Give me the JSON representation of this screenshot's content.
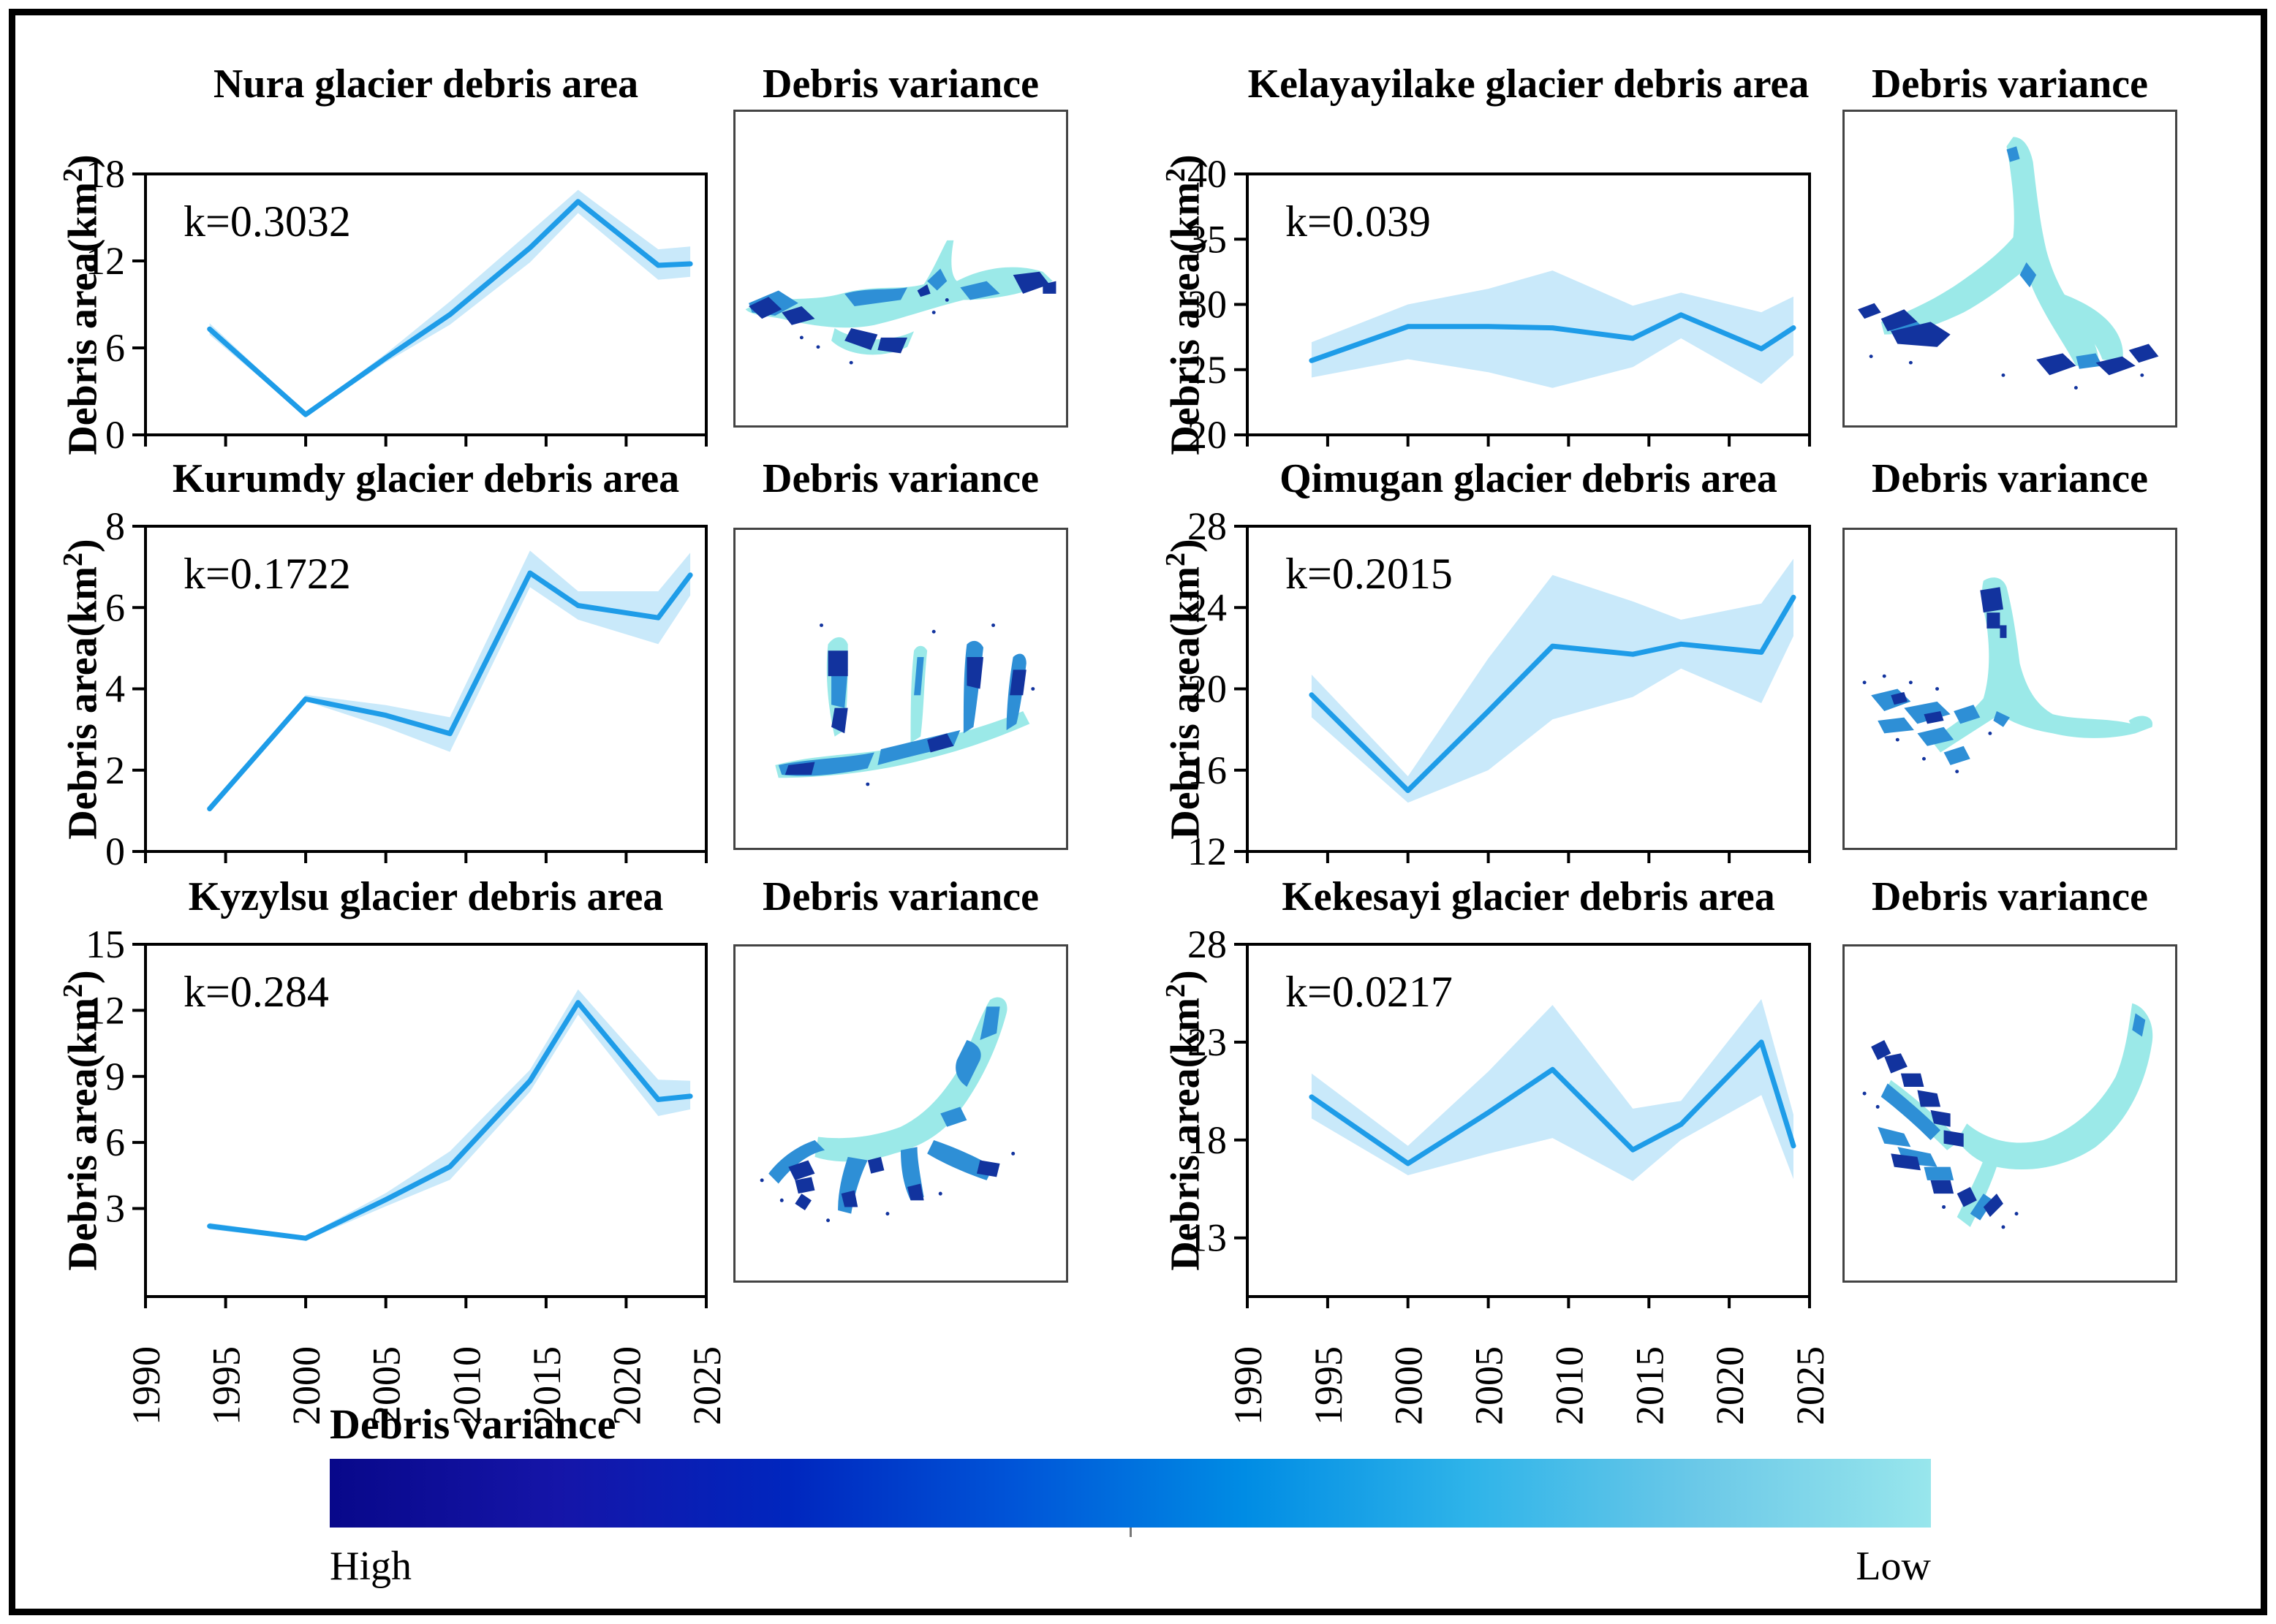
{
  "figure": {
    "background": "#ffffff",
    "border_color": "#000000"
  },
  "colors": {
    "line": "#1E9CE8",
    "band": "#C9E9FA",
    "map_low": "#9BE9E8",
    "map_mid": "#2E8FD6",
    "map_high": "#12339E",
    "colorbar_stops": [
      "#08088A",
      "#1515A8",
      "#0026BE",
      "#0055D8",
      "#008CE4",
      "#2FB4E9",
      "#6CC9E8",
      "#98E6EC"
    ]
  },
  "axis": {
    "ylabel_base": "Debris area(km",
    "ylabel_sup": "2",
    "ylabel_paren": ")",
    "xticks": [
      1990,
      1995,
      2000,
      2005,
      2010,
      2015,
      2020,
      2025
    ]
  },
  "legend": {
    "title": "Debris variance",
    "high": "High",
    "low": "Low"
  },
  "maps": [
    {
      "glacier": "Nura",
      "title": "Debris variance"
    },
    {
      "glacier": "Kelayayilake",
      "title": "Debris variance"
    },
    {
      "glacier": "Kurumdy",
      "title": "Debris variance"
    },
    {
      "glacier": "Qimugan",
      "title": "Debris variance"
    },
    {
      "glacier": "Kyzylsu",
      "title": "Debris variance"
    },
    {
      "glacier": "Kekesayi",
      "title": "Debris variance"
    }
  ],
  "chart_data": [
    {
      "type": "line",
      "title": "Nura glacier debris area",
      "annotation": "k=0.3032",
      "ylabel": "Debris area(km2)",
      "xlim": [
        1990,
        2025
      ],
      "ylim": [
        0,
        18
      ],
      "yticks": [
        0,
        6,
        12,
        18
      ],
      "xticks": [
        1990,
        1995,
        2000,
        2005,
        2010,
        2015,
        2020,
        2025
      ],
      "x": [
        1994,
        2000,
        2005,
        2009,
        2014,
        2017,
        2022,
        2024
      ],
      "series": [
        {
          "name": "mean",
          "values": [
            7.3,
            1.4,
            5.3,
            8.3,
            12.9,
            16.1,
            11.7,
            11.8
          ]
        },
        {
          "name": "lower",
          "values": [
            6.9,
            1.3,
            5.0,
            7.6,
            11.9,
            15.3,
            10.7,
            10.9
          ]
        },
        {
          "name": "upper",
          "values": [
            7.7,
            1.5,
            5.6,
            9.2,
            14.0,
            16.9,
            12.8,
            13.0
          ]
        }
      ],
      "band": true,
      "show_x_labels": false,
      "grid": false,
      "legend_position": "none"
    },
    {
      "type": "line",
      "title": "Kelayayilake glacier debris area",
      "annotation": "k=0.039",
      "ylabel": "Debris area(km2)",
      "xlim": [
        1990,
        2025
      ],
      "ylim": [
        20,
        40
      ],
      "yticks": [
        20,
        25,
        30,
        35,
        40
      ],
      "xticks": [
        1990,
        1995,
        2000,
        2005,
        2010,
        2015,
        2020,
        2025
      ],
      "x": [
        1994,
        2000,
        2005,
        2009,
        2014,
        2017,
        2022,
        2024
      ],
      "series": [
        {
          "name": "mean",
          "values": [
            25.7,
            28.3,
            28.3,
            28.2,
            27.4,
            29.2,
            26.6,
            28.2
          ]
        },
        {
          "name": "lower",
          "values": [
            24.4,
            25.8,
            24.8,
            23.6,
            25.2,
            27.4,
            23.9,
            26.1
          ]
        },
        {
          "name": "upper",
          "values": [
            27.1,
            30.0,
            31.2,
            32.6,
            29.9,
            30.9,
            29.4,
            30.6
          ]
        }
      ],
      "band": true,
      "show_x_labels": false,
      "grid": false,
      "legend_position": "none"
    },
    {
      "type": "line",
      "title": "Kurumdy glacier debris area",
      "annotation": "k=0.1722",
      "ylabel": "Debris area(km2)",
      "xlim": [
        1990,
        2025
      ],
      "ylim": [
        0,
        8
      ],
      "yticks": [
        0,
        2,
        4,
        6,
        8
      ],
      "xticks": [
        1990,
        1995,
        2000,
        2005,
        2010,
        2015,
        2020,
        2025
      ],
      "x": [
        1994,
        2000,
        2005,
        2009,
        2014,
        2017,
        2022,
        2024
      ],
      "series": [
        {
          "name": "mean",
          "values": [
            1.05,
            3.75,
            3.35,
            2.9,
            6.85,
            6.05,
            5.75,
            6.8
          ]
        },
        {
          "name": "lower",
          "values": [
            1.0,
            3.7,
            3.05,
            2.45,
            6.5,
            5.7,
            5.1,
            6.3
          ]
        },
        {
          "name": "upper",
          "values": [
            1.1,
            3.85,
            3.6,
            3.3,
            7.4,
            6.4,
            6.4,
            7.35
          ]
        }
      ],
      "band": true,
      "show_x_labels": false,
      "grid": false,
      "legend_position": "none"
    },
    {
      "type": "line",
      "title": "Qimugan glacier debris area",
      "annotation": "k=0.2015",
      "ylabel": "Debris area(km2)",
      "xlim": [
        1990,
        2025
      ],
      "ylim": [
        12,
        28
      ],
      "yticks": [
        12,
        16,
        20,
        24,
        28
      ],
      "xticks": [
        1990,
        1995,
        2000,
        2005,
        2010,
        2015,
        2020,
        2025
      ],
      "x": [
        1994,
        2000,
        2005,
        2009,
        2014,
        2017,
        2022,
        2024
      ],
      "series": [
        {
          "name": "mean",
          "values": [
            19.7,
            15.0,
            18.9,
            22.1,
            21.7,
            22.2,
            21.8,
            24.5
          ]
        },
        {
          "name": "lower",
          "values": [
            18.6,
            14.4,
            16.0,
            18.5,
            19.6,
            21.0,
            19.3,
            22.6
          ]
        },
        {
          "name": "upper",
          "values": [
            20.7,
            15.7,
            21.5,
            25.6,
            24.3,
            23.4,
            24.2,
            26.4
          ]
        }
      ],
      "band": true,
      "show_x_labels": false,
      "grid": false,
      "legend_position": "none"
    },
    {
      "type": "line",
      "title": "Kyzylsu glacier debris area",
      "annotation": "k=0.284",
      "ylabel": "Debris area(km2)",
      "xlim": [
        1990,
        2025
      ],
      "ylim": [
        -1,
        15
      ],
      "yticks": [
        3,
        6,
        9,
        12,
        15
      ],
      "xticks": [
        1990,
        1995,
        2000,
        2005,
        2010,
        2015,
        2020,
        2025
      ],
      "x": [
        1994,
        2000,
        2005,
        2009,
        2014,
        2017,
        2022,
        2024
      ],
      "series": [
        {
          "name": "mean",
          "values": [
            2.2,
            1.65,
            3.4,
            4.9,
            8.8,
            12.35,
            7.95,
            8.1
          ]
        },
        {
          "name": "lower",
          "values": [
            2.05,
            1.55,
            3.1,
            4.3,
            8.3,
            11.8,
            7.2,
            7.5
          ]
        },
        {
          "name": "upper",
          "values": [
            2.35,
            1.75,
            3.7,
            5.6,
            9.3,
            12.95,
            8.85,
            8.8
          ]
        }
      ],
      "band": true,
      "show_x_labels": true,
      "grid": false,
      "legend_position": "none"
    },
    {
      "type": "line",
      "title": "Kekesayi glacier debris area",
      "annotation": "k=0.0217",
      "ylabel": "Debris area(km2)",
      "xlim": [
        1990,
        2025
      ],
      "ylim": [
        10,
        28
      ],
      "yticks": [
        13,
        18,
        23,
        28
      ],
      "xticks": [
        1990,
        1995,
        2000,
        2005,
        2010,
        2015,
        2020,
        2025
      ],
      "x": [
        1994,
        2000,
        2005,
        2009,
        2014,
        2017,
        2022,
        2024
      ],
      "series": [
        {
          "name": "mean",
          "values": [
            20.2,
            16.8,
            19.4,
            21.6,
            17.5,
            18.8,
            23.0,
            17.7
          ]
        },
        {
          "name": "lower",
          "values": [
            19.1,
            16.2,
            17.3,
            18.1,
            15.9,
            18.0,
            20.3,
            16.0
          ]
        },
        {
          "name": "upper",
          "values": [
            21.4,
            17.7,
            21.5,
            24.9,
            19.6,
            20.0,
            25.2,
            19.3
          ]
        }
      ],
      "band": true,
      "show_x_labels": true,
      "grid": false,
      "legend_position": "none"
    }
  ]
}
